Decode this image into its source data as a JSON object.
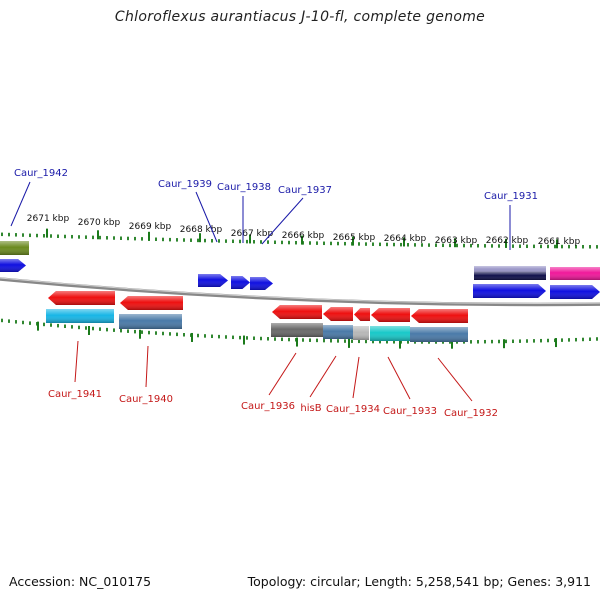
{
  "title": "Chloroflexus aurantiacus J-10-fl, complete genome",
  "footer": {
    "accession": "Accession: NC_010175",
    "stats": "Topology: circular; Length: 5,258,541 bp; Genes: 3,911"
  },
  "colors": {
    "top_label": "#1a1aa8",
    "bottom_label": "#c41818",
    "tick": "#1a7a1a",
    "backbone": "#888888"
  },
  "kbp_ticks": [
    "2671 kbp",
    "2670 kbp",
    "2669 kbp",
    "2668 kbp",
    "2667 kbp",
    "2666 kbp",
    "2665 kbp",
    "2664 kbp",
    "2663 kbp",
    "2662 kbp",
    "2661 kbp"
  ],
  "top_labels": [
    "Caur_1942",
    "Caur_1939",
    "Caur_1938",
    "Caur_1937",
    "Caur_1931"
  ],
  "bottom_labels": [
    "Caur_1941",
    "Caur_1940",
    "Caur_1936",
    "hisB",
    "Caur_1934",
    "Caur_1933",
    "Caur_1932"
  ]
}
